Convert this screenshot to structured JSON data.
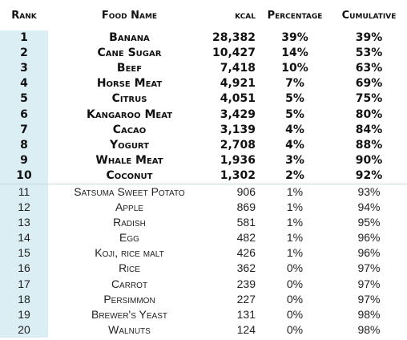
{
  "table": {
    "columns": [
      "Rank",
      "Food Name",
      "kcal",
      "Percentage",
      "Cumulative"
    ],
    "rows": [
      [
        "1",
        "Banana",
        "28,382",
        "39%",
        "39%"
      ],
      [
        "2",
        "Cane Sugar",
        "10,427",
        "14%",
        "53%"
      ],
      [
        "3",
        "Beef",
        "7,418",
        "10%",
        "63%"
      ],
      [
        "4",
        "Horse Meat",
        "4,921",
        "7%",
        "69%"
      ],
      [
        "5",
        "Citrus",
        "4,051",
        "5%",
        "75%"
      ],
      [
        "6",
        "Kangaroo Meat",
        "3,429",
        "5%",
        "80%"
      ],
      [
        "7",
        "Cacao",
        "3,139",
        "4%",
        "84%"
      ],
      [
        "8",
        "Yogurt",
        "2,708",
        "4%",
        "88%"
      ],
      [
        "9",
        "Whale Meat",
        "1,936",
        "3%",
        "90%"
      ],
      [
        "10",
        "Coconut",
        "1,302",
        "2%",
        "92%"
      ],
      [
        "11",
        "Satsuma Sweet Potato",
        "906",
        "1%",
        "93%"
      ],
      [
        "12",
        "Apple",
        "869",
        "1%",
        "94%"
      ],
      [
        "13",
        "Radish",
        "581",
        "1%",
        "95%"
      ],
      [
        "14",
        "Egg",
        "482",
        "1%",
        "96%"
      ],
      [
        "15",
        "Koji, rice malt",
        "426",
        "1%",
        "96%"
      ],
      [
        "16",
        "Rice",
        "362",
        "0%",
        "97%"
      ],
      [
        "17",
        "Carrot",
        "239",
        "0%",
        "97%"
      ],
      [
        "18",
        "Persimmon",
        "227",
        "0%",
        "97%"
      ],
      [
        "19",
        "Brewer's Yeast",
        "131",
        "0%",
        "98%"
      ],
      [
        "20",
        "Walnuts",
        "124",
        "0%",
        "98%"
      ]
    ]
  }
}
